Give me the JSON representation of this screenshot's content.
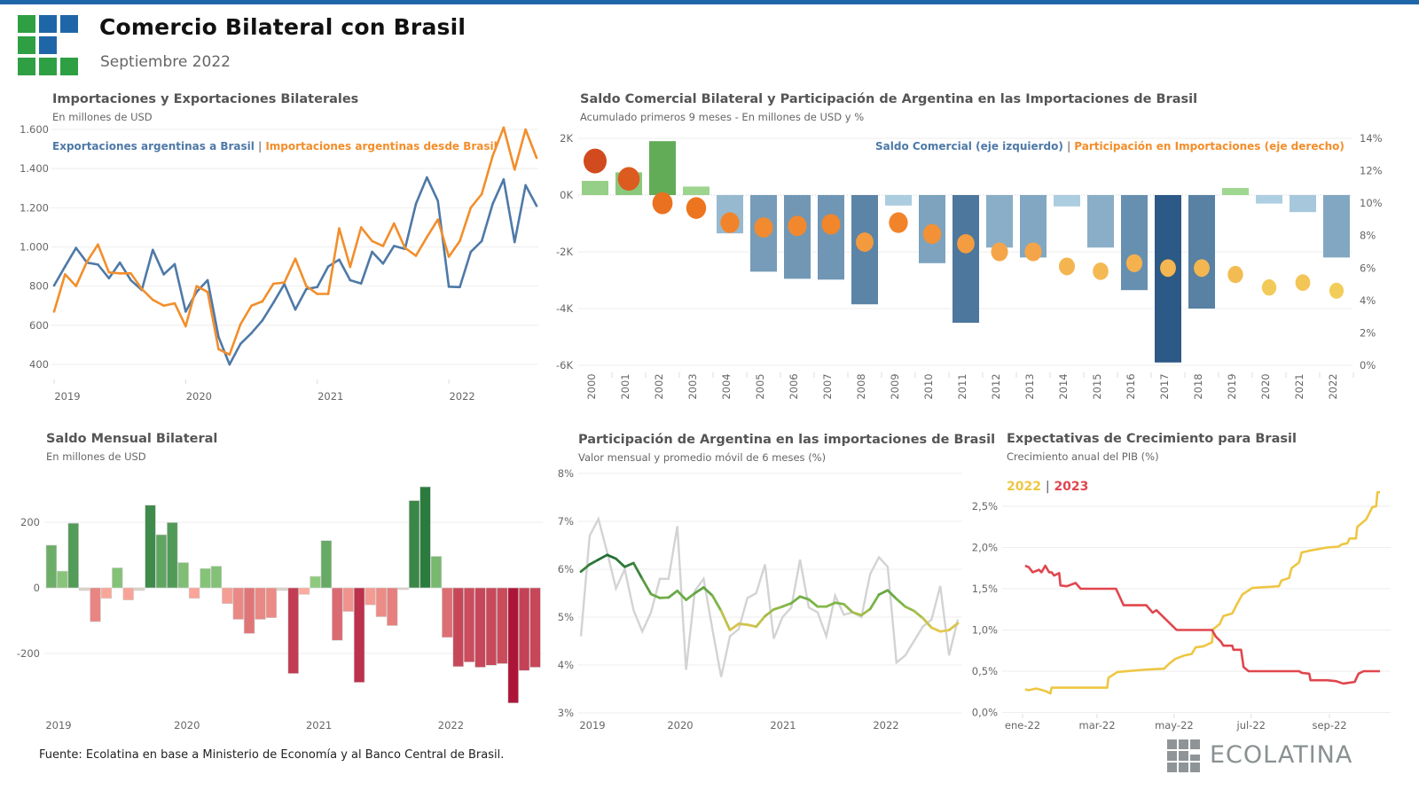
{
  "header": {
    "title": "Comercio Bilateral con Brasil",
    "subtitle": "Septiembre 2022",
    "bar_color": "#1f66a8"
  },
  "logo_colors": {
    "green": "#2ea043",
    "blue": "#1f66a8"
  },
  "footer": {
    "source": "Fuente: Ecolatina en base a Ministerio de Economía y al Banco Central de Brasil.",
    "brand": "ECOLATINA"
  },
  "panels": {
    "trade": {
      "title": "Importaciones y Exportaciones Bilaterales",
      "subtitle": "En millones de USD",
      "legend_a": "Exportaciones argentinas a Brasil",
      "legend_sep": "|",
      "legend_b": "Importaciones argentinas desde Brasil"
    },
    "annual": {
      "title": "Saldo Comercial Bilateral y Participación de Argentina en las Importaciones de Brasil",
      "subtitle": "Acumulado primeros 9 meses - En millones de USD y %",
      "legend_a": "Saldo Comercial (eje izquierdo)",
      "legend_sep": "|",
      "legend_b": "Participación en Importaciones (eje derecho)"
    },
    "monthly": {
      "title": "Saldo Mensual Bilateral",
      "subtitle": "En millones de USD"
    },
    "share": {
      "title": "Participación de Argentina en las importaciones de Brasil",
      "subtitle": "Valor mensual y promedio móvil de 6 meses (%)"
    },
    "growth": {
      "title": "Expectativas de Crecimiento para Brasil",
      "subtitle": "Crecimiento anual del PIB (%)",
      "legend_a": "2022",
      "legend_sep": "|",
      "legend_b": "2023"
    }
  },
  "chart_data": [
    {
      "id": "trade",
      "type": "line",
      "ylim": [
        400,
        1600
      ],
      "yticks": [
        "400",
        "600",
        "800",
        "1.000",
        "1.200",
        "1.400",
        "1.600"
      ],
      "ytick_values": [
        400,
        600,
        800,
        1000,
        1200,
        1400,
        1600
      ],
      "xticks": [
        "2019",
        "2020",
        "2021",
        "2022"
      ],
      "grid": true,
      "legend_position": "top-left",
      "x": [
        "2019-01",
        "2019-02",
        "2019-03",
        "2019-04",
        "2019-05",
        "2019-06",
        "2019-07",
        "2019-08",
        "2019-09",
        "2019-10",
        "2019-11",
        "2019-12",
        "2020-01",
        "2020-02",
        "2020-03",
        "2020-04",
        "2020-05",
        "2020-06",
        "2020-07",
        "2020-08",
        "2020-09",
        "2020-10",
        "2020-11",
        "2020-12",
        "2021-01",
        "2021-02",
        "2021-03",
        "2021-04",
        "2021-05",
        "2021-06",
        "2021-07",
        "2021-08",
        "2021-09",
        "2021-10",
        "2021-11",
        "2021-12",
        "2022-01",
        "2022-02",
        "2022-03",
        "2022-04",
        "2022-05",
        "2022-06",
        "2022-07",
        "2022-08",
        "2022-09"
      ],
      "series": [
        {
          "name": "Exportaciones argentinas a Brasil",
          "color": "#4e79a7",
          "values": [
            803,
            900,
            995,
            920,
            910,
            840,
            920,
            830,
            780,
            985,
            860,
            912,
            670,
            770,
            830,
            540,
            400,
            505,
            560,
            625,
            715,
            810,
            680,
            785,
            795,
            900,
            935,
            830,
            813,
            975,
            915,
            1005,
            990,
            1220,
            1355,
            1235,
            797,
            795,
            975,
            1030,
            1220,
            1345,
            1025,
            1315,
            1210
          ]
        },
        {
          "name": "Importaciones argentinas desde Brasil",
          "color": "#f28e2b",
          "values": [
            670,
            860,
            800,
            925,
            1012,
            870,
            865,
            865,
            785,
            730,
            700,
            712,
            595,
            800,
            770,
            478,
            450,
            605,
            700,
            722,
            812,
            818,
            940,
            800,
            760,
            760,
            1095,
            898,
            1100,
            1030,
            1005,
            1120,
            995,
            955,
            1050,
            1140,
            950,
            1030,
            1200,
            1270,
            1465,
            1610,
            1395,
            1600,
            1455
          ]
        }
      ]
    },
    {
      "id": "annual",
      "type": "bar",
      "categories": [
        "2000",
        "2001",
        "2002",
        "2003",
        "2004",
        "2005",
        "2006",
        "2007",
        "2008",
        "2009",
        "2010",
        "2011",
        "2012",
        "2013",
        "2014",
        "2015",
        "2016",
        "2017",
        "2018",
        "2019",
        "2020",
        "2021",
        "2022"
      ],
      "series": [
        {
          "name": "Saldo Comercial (eje izquierdo)",
          "axis": "left",
          "unit": "miles de millones USD",
          "values": [
            0.5,
            0.8,
            1.9,
            0.3,
            -1.35,
            -2.7,
            -2.95,
            -2.98,
            -3.85,
            -0.37,
            -2.4,
            -4.5,
            -1.85,
            -2.2,
            -0.4,
            -1.85,
            -3.35,
            -5.9,
            -4.0,
            0.25,
            -0.3,
            -0.6,
            -2.2
          ]
        },
        {
          "name": "Participación en Importaciones (eje derecho)",
          "axis": "right",
          "type": "scatter",
          "values": [
            12.6,
            11.5,
            10.0,
            9.7,
            8.8,
            8.5,
            8.6,
            8.7,
            7.6,
            8.8,
            8.1,
            7.5,
            7.0,
            7.0,
            6.1,
            5.8,
            6.3,
            6.0,
            6.0,
            5.6,
            4.8,
            5.1,
            4.6
          ]
        }
      ],
      "ylim_left": [
        -6,
        2
      ],
      "yticks_left": [
        "-6K",
        "-4K",
        "-2K",
        "0K",
        "2K"
      ],
      "ytick_values_left": [
        -6,
        -4,
        -2,
        0,
        2
      ],
      "ylim_right": [
        0,
        14
      ],
      "yticks_right": [
        "0%",
        "2%",
        "4%",
        "6%",
        "8%",
        "10%",
        "12%",
        "14%"
      ],
      "ytick_values_right": [
        0,
        2,
        4,
        6,
        8,
        10,
        12,
        14
      ],
      "colors": {
        "positive": "#6ab35c",
        "negative": "#2a5783",
        "dot_high": "#d14b1e",
        "dot_low": "#f2cf5b"
      },
      "grid": true,
      "legend_position": "top-right"
    },
    {
      "id": "monthly",
      "type": "bar",
      "ylim": [
        -360,
        320
      ],
      "yticks": [
        "-200",
        "0",
        "200"
      ],
      "ytick_values": [
        -200,
        0,
        200
      ],
      "xticks": [
        "2019",
        "2020",
        "2021",
        "2022"
      ],
      "values": [
        130,
        51,
        197,
        -8,
        -103,
        -32,
        61,
        -37,
        -8,
        252,
        162,
        199,
        77,
        -32,
        59,
        66,
        -48,
        -96,
        -139,
        -96,
        -91,
        -8,
        -261,
        -20,
        35,
        144,
        -160,
        -72,
        -288,
        -52,
        -88,
        -115,
        -3,
        266,
        308,
        96,
        -151,
        -240,
        -226,
        -242,
        -236,
        -231,
        -351,
        -252,
        -242
      ],
      "colors": {
        "positive": "#2a7a3e",
        "negative": "#ad1538"
      },
      "grid": true
    },
    {
      "id": "share",
      "type": "line",
      "ylim": [
        3,
        8
      ],
      "yticks": [
        "3%",
        "4%",
        "5%",
        "6%",
        "7%",
        "8%"
      ],
      "ytick_values": [
        3,
        4,
        5,
        6,
        7,
        8
      ],
      "xticks": [
        "2019",
        "2020",
        "2021",
        "2022"
      ],
      "series": [
        {
          "kind": "monthly",
          "color": "#d3d3d3",
          "values": [
            4.6,
            6.7,
            7.05,
            6.35,
            5.6,
            6.0,
            5.15,
            4.7,
            5.1,
            5.8,
            5.8,
            6.9,
            3.9,
            5.55,
            5.8,
            4.75,
            3.75,
            4.6,
            4.75,
            5.4,
            5.5,
            6.1,
            4.55,
            5.0,
            5.2,
            6.2,
            5.2,
            5.1,
            4.6,
            5.45,
            5.05,
            5.1,
            5.0,
            5.9,
            6.25,
            6.05,
            4.05,
            4.2,
            4.5,
            4.8,
            4.95,
            5.65,
            4.2,
            4.95
          ]
        },
        {
          "kind": "moving-average-6m",
          "color_high": "#1e6b35",
          "color_mid": "#7ab648",
          "color_low": "#e8c84f",
          "values": [
            5.95,
            6.1,
            6.2,
            6.3,
            6.22,
            6.05,
            6.13,
            5.8,
            5.48,
            5.4,
            5.41,
            5.55,
            5.36,
            5.5,
            5.62,
            5.45,
            5.13,
            4.73,
            4.86,
            4.84,
            4.8,
            5.02,
            5.16,
            5.22,
            5.29,
            5.43,
            5.37,
            5.22,
            5.22,
            5.3,
            5.27,
            5.1,
            5.04,
            5.17,
            5.47,
            5.56,
            5.38,
            5.22,
            5.13,
            4.98,
            4.78,
            4.7,
            4.73,
            4.87
          ]
        }
      ],
      "grid": true
    },
    {
      "id": "growth",
      "type": "line",
      "ylim": [
        0,
        2.7
      ],
      "yticks": [
        "0,0%",
        "0,5%",
        "1,0%",
        "1,5%",
        "2,0%",
        "2,5%"
      ],
      "ytick_values": [
        0,
        0.5,
        1,
        1.5,
        2,
        2.5
      ],
      "xticks": [
        "ene-22",
        "mar-22",
        "may-22",
        "jul-22",
        "sep-22"
      ],
      "xtick_dates": [
        "2022-01-01",
        "2022-03-01",
        "2022-05-01",
        "2022-07-01",
        "2022-09-01"
      ],
      "series": [
        {
          "name": "2022",
          "color": "#eec643",
          "points": [
            [
              "2022-01-03",
              0.28
            ],
            [
              "2022-01-06",
              0.27
            ],
            [
              "2022-01-12",
              0.29
            ],
            [
              "2022-01-19",
              0.26
            ],
            [
              "2022-01-23",
              0.23
            ],
            [
              "2022-01-24",
              0.3
            ],
            [
              "2022-03-09",
              0.3
            ],
            [
              "2022-03-10",
              0.42
            ],
            [
              "2022-03-17",
              0.49
            ],
            [
              "2022-04-09",
              0.52
            ],
            [
              "2022-04-23",
              0.53
            ],
            [
              "2022-04-27",
              0.59
            ],
            [
              "2022-05-02",
              0.65
            ],
            [
              "2022-05-09",
              0.69
            ],
            [
              "2022-05-15",
              0.71
            ],
            [
              "2022-05-18",
              0.79
            ],
            [
              "2022-05-24",
              0.8
            ],
            [
              "2022-05-31",
              0.85
            ],
            [
              "2022-06-01",
              1.01
            ],
            [
              "2022-06-06",
              1.07
            ],
            [
              "2022-06-09",
              1.17
            ],
            [
              "2022-06-16",
              1.2
            ],
            [
              "2022-06-20",
              1.32
            ],
            [
              "2022-06-24",
              1.43
            ],
            [
              "2022-07-02",
              1.51
            ],
            [
              "2022-07-23",
              1.53
            ],
            [
              "2022-07-25",
              1.6
            ],
            [
              "2022-07-31",
              1.63
            ],
            [
              "2022-08-02",
              1.75
            ],
            [
              "2022-08-08",
              1.82
            ],
            [
              "2022-08-10",
              1.94
            ],
            [
              "2022-08-19",
              1.97
            ],
            [
              "2022-08-30",
              2.0
            ],
            [
              "2022-09-08",
              2.01
            ],
            [
              "2022-09-11",
              2.04
            ],
            [
              "2022-09-15",
              2.05
            ],
            [
              "2022-09-17",
              2.11
            ],
            [
              "2022-09-22",
              2.11
            ],
            [
              "2022-09-23",
              2.25
            ],
            [
              "2022-09-30",
              2.34
            ],
            [
              "2022-10-05",
              2.49
            ],
            [
              "2022-10-08",
              2.5
            ],
            [
              "2022-10-09",
              2.67
            ],
            [
              "2022-10-11",
              2.67
            ]
          ]
        },
        {
          "name": "2023",
          "color": "#e0464e",
          "points": [
            [
              "2022-01-03",
              1.78
            ],
            [
              "2022-01-06",
              1.76
            ],
            [
              "2022-01-09",
              1.7
            ],
            [
              "2022-01-14",
              1.73
            ],
            [
              "2022-01-16",
              1.7
            ],
            [
              "2022-01-19",
              1.78
            ],
            [
              "2022-01-22",
              1.7
            ],
            [
              "2022-01-24",
              1.7
            ],
            [
              "2022-01-26",
              1.66
            ],
            [
              "2022-01-30",
              1.69
            ],
            [
              "2022-01-31",
              1.54
            ],
            [
              "2022-02-05",
              1.53
            ],
            [
              "2022-02-12",
              1.57
            ],
            [
              "2022-02-16",
              1.5
            ],
            [
              "2022-03-16",
              1.5
            ],
            [
              "2022-03-22",
              1.3
            ],
            [
              "2022-04-09",
              1.3
            ],
            [
              "2022-04-14",
              1.21
            ],
            [
              "2022-04-17",
              1.24
            ],
            [
              "2022-04-23",
              1.15
            ],
            [
              "2022-04-29",
              1.06
            ],
            [
              "2022-05-03",
              1.0
            ],
            [
              "2022-05-31",
              1.0
            ],
            [
              "2022-06-03",
              0.92
            ],
            [
              "2022-06-07",
              0.86
            ],
            [
              "2022-06-09",
              0.81
            ],
            [
              "2022-06-16",
              0.81
            ],
            [
              "2022-06-17",
              0.76
            ],
            [
              "2022-06-23",
              0.76
            ],
            [
              "2022-06-25",
              0.55
            ],
            [
              "2022-06-29",
              0.5
            ],
            [
              "2022-08-08",
              0.5
            ],
            [
              "2022-08-10",
              0.48
            ],
            [
              "2022-08-16",
              0.47
            ],
            [
              "2022-08-17",
              0.39
            ],
            [
              "2022-08-30",
              0.39
            ],
            [
              "2022-09-06",
              0.38
            ],
            [
              "2022-09-12",
              0.35
            ],
            [
              "2022-09-21",
              0.37
            ],
            [
              "2022-09-24",
              0.47
            ],
            [
              "2022-09-28",
              0.5
            ],
            [
              "2022-10-11",
              0.5
            ]
          ]
        }
      ],
      "grid": true,
      "legend_position": "top-left"
    }
  ]
}
